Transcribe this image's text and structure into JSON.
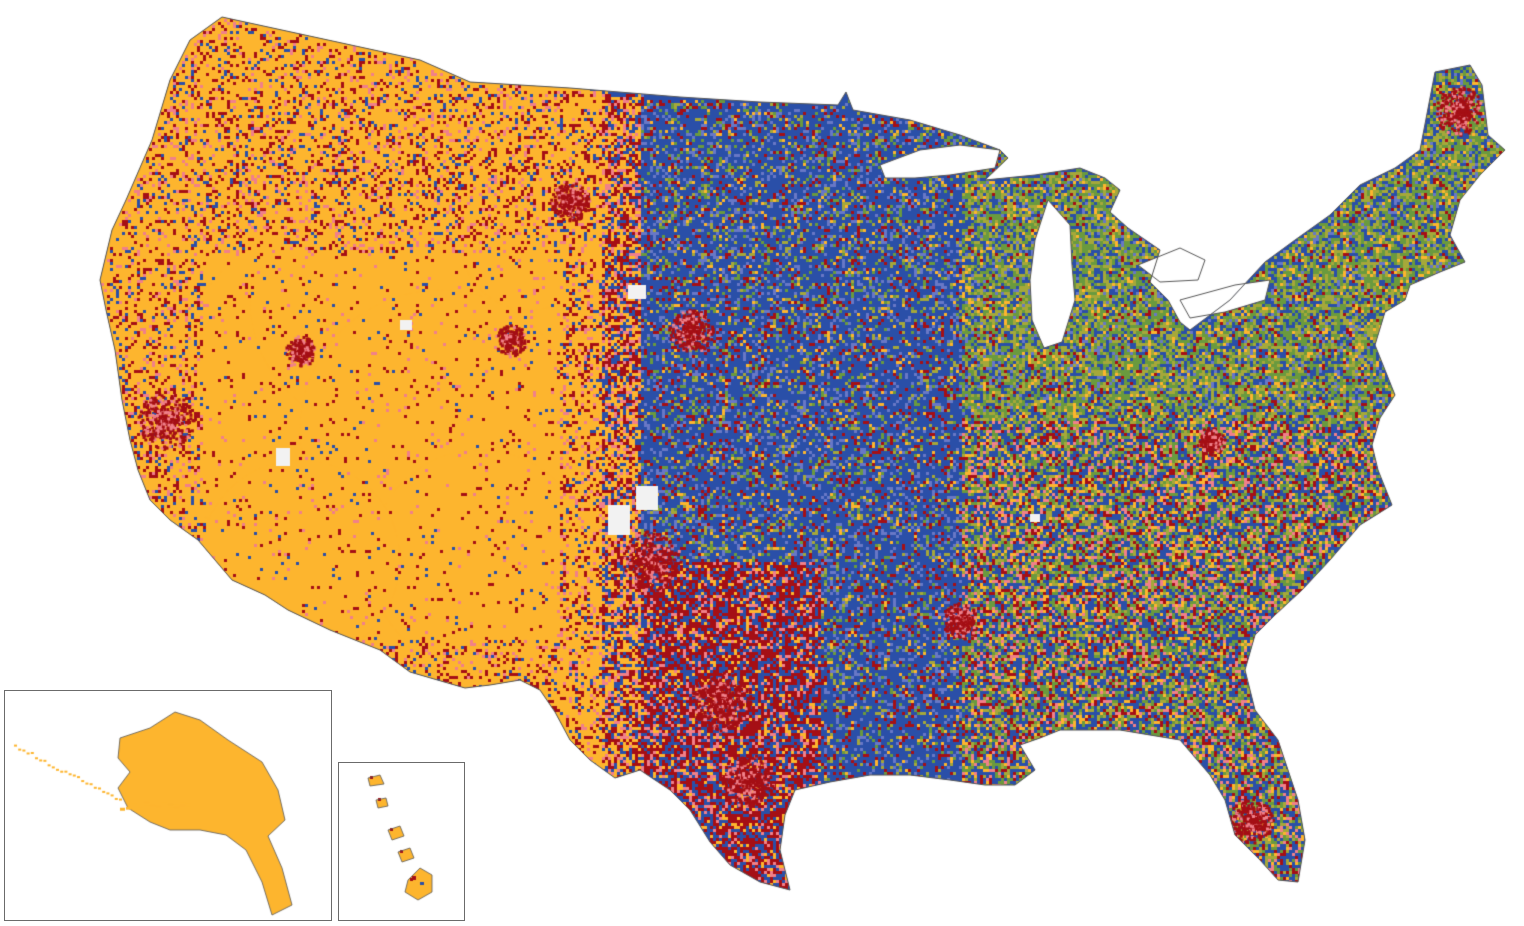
{
  "map": {
    "colors": {
      "gold": "#fdb52e",
      "dark_red": "#a50f15",
      "salmon": "#f0808a",
      "blue": "#2a4fa8",
      "periwinkle": "#6878c6",
      "green": "#6a9a3e",
      "olive": "#a5a83a",
      "white": "#ffffff",
      "outline": "#555555"
    },
    "regions": {
      "main": "contiguous-united-states",
      "inset_1": "alaska",
      "inset_2": "hawaii"
    }
  }
}
